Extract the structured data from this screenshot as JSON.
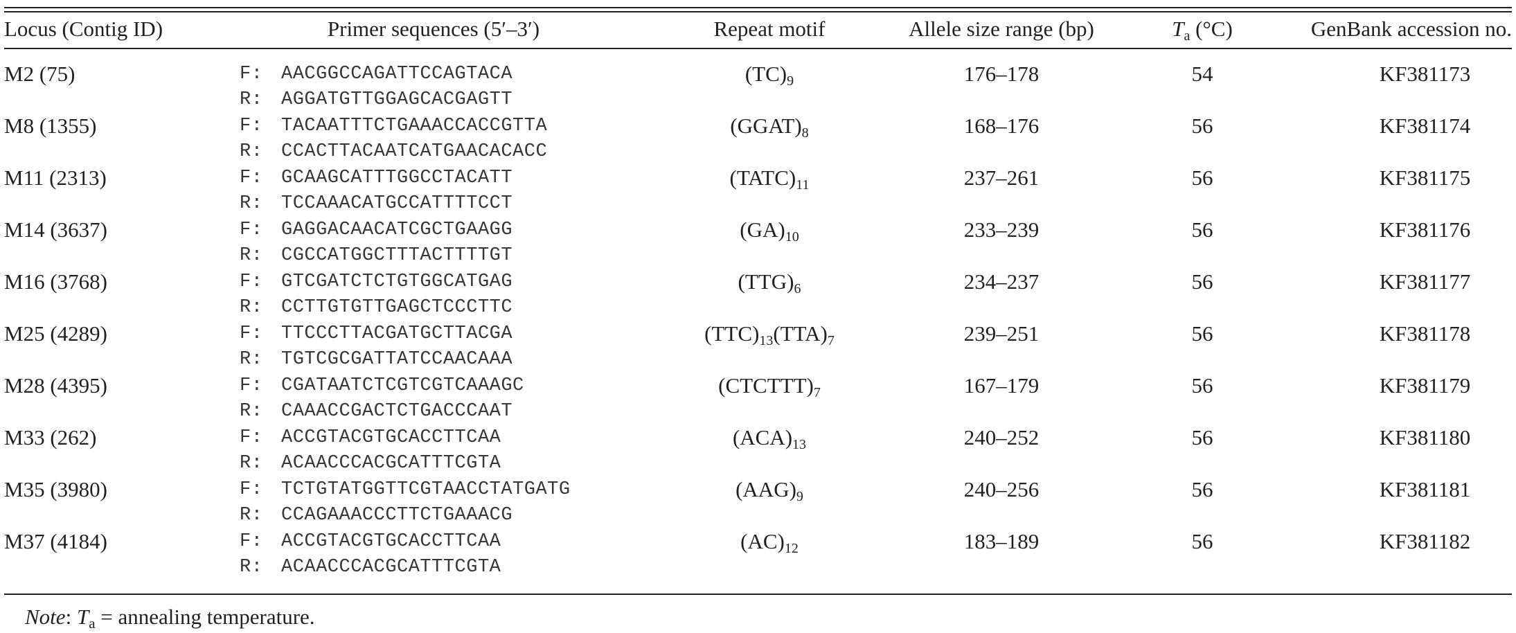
{
  "table": {
    "headers": {
      "locus": "Locus (Contig ID)",
      "primer": "Primer sequences (5′–3′)",
      "motif": "Repeat motif",
      "allele": "Allele size range (bp)",
      "ta_letter": "T",
      "ta_sub": "a",
      "ta_unit": " (°C)",
      "genbank": "GenBank accession no."
    },
    "primer_labels": {
      "forward": "F:",
      "reverse": "R:"
    },
    "rows": [
      {
        "locus": "M2 (75)",
        "forward": "AACGGCCAGATTCCAGTACA",
        "reverse": "AGGATGTTGGAGCACGAGTT",
        "motif": [
          {
            "unit": "(TC)",
            "n": "9"
          }
        ],
        "allele": "176–178",
        "ta": "54",
        "genbank": "KF381173"
      },
      {
        "locus": "M8 (1355)",
        "forward": "TACAATTTCTGAAACCACCGTTA",
        "reverse": "CCACTTACAATCATGAACACACC",
        "motif": [
          {
            "unit": "(GGAT)",
            "n": "8"
          }
        ],
        "allele": "168–176",
        "ta": "56",
        "genbank": "KF381174"
      },
      {
        "locus": "M11 (2313)",
        "forward": "GCAAGCATTTGGCCTACATT",
        "reverse": "TCCAAACATGCCATTTTCCT",
        "motif": [
          {
            "unit": "(TATC)",
            "n": "11"
          }
        ],
        "allele": "237–261",
        "ta": "56",
        "genbank": "KF381175"
      },
      {
        "locus": "M14 (3637)",
        "forward": "GAGGACAACATCGCTGAAGG",
        "reverse": "CGCCATGGCTTTACTTTTGT",
        "motif": [
          {
            "unit": "(GA)",
            "n": "10"
          }
        ],
        "allele": "233–239",
        "ta": "56",
        "genbank": "KF381176"
      },
      {
        "locus": "M16 (3768)",
        "forward": "GTCGATCTCTGTGGCATGAG",
        "reverse": "CCTTGTGTTGAGCTCCCTTC",
        "motif": [
          {
            "unit": "(TTG)",
            "n": "6"
          }
        ],
        "allele": "234–237",
        "ta": "56",
        "genbank": "KF381177"
      },
      {
        "locus": "M25 (4289)",
        "forward": "TTCCCTTACGATGCTTACGA",
        "reverse": "TGTCGCGATTATCCAACAAA",
        "motif": [
          {
            "unit": "(TTC)",
            "n": "13"
          },
          {
            "unit": "(TTA)",
            "n": "7"
          }
        ],
        "allele": "239–251",
        "ta": "56",
        "genbank": "KF381178"
      },
      {
        "locus": "M28 (4395)",
        "forward": "CGATAATCTCGTCGTCAAAGC",
        "reverse": "CAAACCGACTCTGACCCAAT",
        "motif": [
          {
            "unit": "(CTCTTT)",
            "n": "7"
          }
        ],
        "allele": "167–179",
        "ta": "56",
        "genbank": "KF381179"
      },
      {
        "locus": "M33 (262)",
        "forward": "ACCGTACGTGCACCTTCAA",
        "reverse": "ACAACCCACGCATTTCGTA",
        "motif": [
          {
            "unit": "(ACA)",
            "n": "13"
          }
        ],
        "allele": "240–252",
        "ta": "56",
        "genbank": "KF381180"
      },
      {
        "locus": "M35 (3980)",
        "forward": "TCTGTATGGTTCGTAACCTATGATG",
        "reverse": "CCAGAAACCCTTCTGAAACG",
        "motif": [
          {
            "unit": "(AAG)",
            "n": "9"
          }
        ],
        "allele": "240–256",
        "ta": "56",
        "genbank": "KF381181"
      },
      {
        "locus": "M37 (4184)",
        "forward": "ACCGTACGTGCACCTTCAA",
        "reverse": "ACAACCCACGCATTTCGTA",
        "motif": [
          {
            "unit": "(AC)",
            "n": "12"
          }
        ],
        "allele": "183–189",
        "ta": "56",
        "genbank": "KF381182"
      }
    ],
    "note": {
      "label": "Note",
      "colon": ": ",
      "ta_letter": "T",
      "ta_sub": "a",
      "text": " = annealing temperature."
    }
  }
}
